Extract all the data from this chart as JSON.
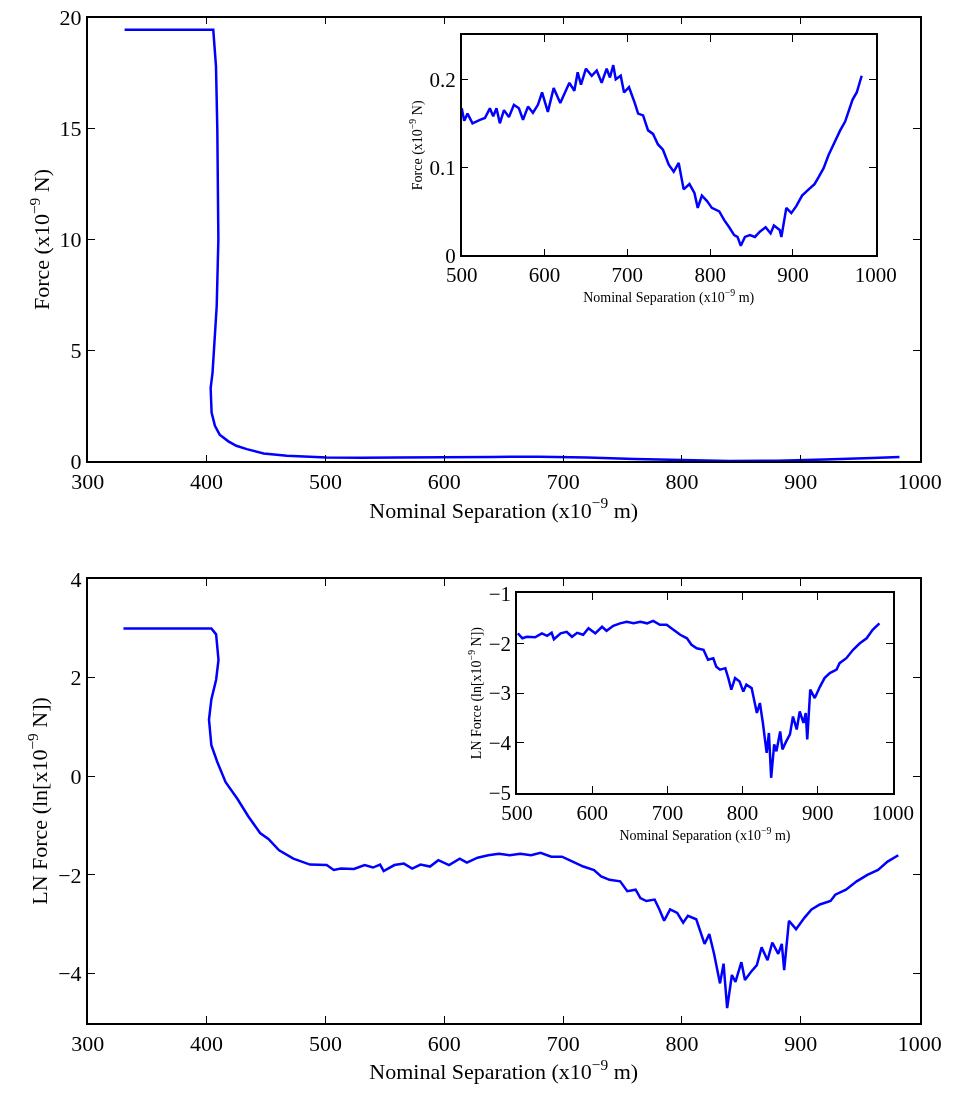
{
  "chart_data": [
    {
      "type": "line",
      "xlabel": "Nominal Separation (x10$^{−9}$ m)",
      "ylabel": "Force (x10$^{−9}$ N)",
      "xlim": [
        300,
        1000
      ],
      "xticks": [
        300,
        400,
        500,
        600,
        700,
        800,
        900,
        1000
      ],
      "ylim": [
        0,
        20
      ],
      "yticks": [
        0,
        5,
        10,
        15,
        20
      ],
      "marker": "none",
      "line_style": "solid",
      "series": [
        {
          "color": "#0000ff",
          "x": [
            331,
            405.6,
            407.9,
            409,
            409.9,
            408.5,
            405,
            403.4,
            404.2,
            407,
            411,
            418.3,
            425,
            433.8,
            448,
            467.6,
            501,
            530,
            560,
            600,
            640,
            680,
            720,
            760,
            800,
            840,
            880,
            920,
            960,
            983
          ],
          "values": [
            19.45,
            19.45,
            17.8,
            15,
            10,
            7,
            4,
            3.3,
            2.2,
            1.6,
            1.2,
            0.9,
            0.7,
            0.55,
            0.35,
            0.25,
            0.17,
            0.16,
            0.17,
            0.18,
            0.2,
            0.21,
            0.17,
            0.1,
            0.06,
            0.02,
            0.03,
            0.08,
            0.15,
            0.2
          ]
        }
      ]
    },
    {
      "type": "line",
      "xlabel": "Nominal Separation (x10$^{−9}$ m)",
      "ylabel": "Force (x10$^{−9}$ N)",
      "xlim": [
        500,
        1000
      ],
      "xticks": [
        500,
        600,
        700,
        800,
        900,
        1000
      ],
      "ylim": [
        0,
        0.25
      ],
      "yticks": [
        0,
        0.1,
        0.2
      ],
      "marker": "none",
      "line_style": "solid",
      "series": [
        {
          "color": "#0000ff",
          "x": [
            500,
            503,
            507,
            513,
            522,
            528,
            534,
            538,
            542,
            546,
            551,
            557,
            563,
            569,
            574,
            580,
            586,
            592,
            597,
            604,
            611,
            619,
            630,
            636,
            640,
            644,
            650,
            657,
            663,
            669,
            675,
            679,
            683,
            686,
            692,
            696,
            702,
            709,
            713,
            719,
            725,
            731,
            737,
            743,
            750,
            756,
            762,
            768,
            775,
            781,
            785,
            790,
            796,
            802,
            811,
            817,
            823,
            829,
            833,
            837,
            842,
            848,
            854,
            860,
            867,
            873,
            877,
            884,
            886,
            892,
            898,
            904,
            911,
            919,
            926,
            931,
            937,
            943,
            949,
            957,
            963,
            972,
            977,
            983
          ],
          "values": [
            0.167,
            0.153,
            0.161,
            0.15,
            0.154,
            0.156,
            0.167,
            0.158,
            0.167,
            0.15,
            0.165,
            0.157,
            0.171,
            0.167,
            0.154,
            0.169,
            0.162,
            0.171,
            0.185,
            0.163,
            0.19,
            0.173,
            0.196,
            0.187,
            0.208,
            0.194,
            0.212,
            0.204,
            0.21,
            0.196,
            0.212,
            0.202,
            0.216,
            0.2,
            0.204,
            0.185,
            0.191,
            0.173,
            0.161,
            0.159,
            0.142,
            0.138,
            0.126,
            0.12,
            0.103,
            0.095,
            0.105,
            0.075,
            0.081,
            0.071,
            0.054,
            0.068,
            0.062,
            0.054,
            0.05,
            0.04,
            0.032,
            0.023,
            0.021,
            0.011,
            0.021,
            0.023,
            0.021,
            0.027,
            0.032,
            0.025,
            0.034,
            0.029,
            0.021,
            0.054,
            0.048,
            0.056,
            0.068,
            0.075,
            0.081,
            0.089,
            0.099,
            0.114,
            0.126,
            0.142,
            0.152,
            0.177,
            0.185,
            0.204
          ]
        }
      ]
    },
    {
      "type": "line",
      "xlabel": "Nominal Separation (x10$^{−9}$ m)",
      "ylabel": "LN Force (ln[x10$^{−9}$ N])",
      "xlim": [
        300,
        1000
      ],
      "xticks": [
        300,
        400,
        500,
        600,
        700,
        800,
        900,
        1000
      ],
      "ylim": [
        -5,
        4
      ],
      "yticks": [
        -4,
        -2,
        0,
        2,
        4
      ],
      "marker": "none",
      "line_style": "solid",
      "series": [
        {
          "color": "#0000ff",
          "x": [
            330,
            404,
            408,
            410,
            408,
            404,
            402,
            404,
            409,
            416,
            426,
            435,
            445,
            452,
            461,
            473,
            487,
            501,
            507,
            513,
            524,
            533,
            540,
            546,
            549,
            558,
            566,
            573,
            580,
            588,
            595,
            604,
            613,
            619,
            628,
            637,
            646,
            655,
            664,
            673,
            681,
            690,
            699,
            708,
            717,
            726,
            732,
            739,
            748,
            754,
            761,
            765,
            770,
            777,
            781,
            785,
            790,
            796,
            801,
            805,
            812,
            819,
            823,
            827,
            832,
            835,
            838,
            842,
            845,
            850,
            853,
            858,
            863,
            867,
            872,
            876,
            881,
            884,
            886,
            890,
            896,
            903,
            909,
            916,
            925,
            929,
            938,
            947,
            956,
            965,
            973,
            982
          ],
          "values": [
            3.0,
            3.0,
            2.88,
            2.36,
            1.96,
            1.56,
            1.15,
            0.63,
            0.29,
            -0.12,
            -0.46,
            -0.81,
            -1.15,
            -1.27,
            -1.5,
            -1.67,
            -1.79,
            -1.8,
            -1.9,
            -1.87,
            -1.88,
            -1.8,
            -1.85,
            -1.79,
            -1.92,
            -1.8,
            -1.77,
            -1.87,
            -1.79,
            -1.83,
            -1.7,
            -1.8,
            -1.67,
            -1.75,
            -1.65,
            -1.6,
            -1.57,
            -1.6,
            -1.57,
            -1.6,
            -1.55,
            -1.63,
            -1.63,
            -1.73,
            -1.83,
            -1.9,
            -2.03,
            -2.1,
            -2.13,
            -2.33,
            -2.3,
            -2.47,
            -2.53,
            -2.5,
            -2.7,
            -2.93,
            -2.7,
            -2.77,
            -2.97,
            -2.83,
            -2.9,
            -3.4,
            -3.2,
            -3.6,
            -4.2,
            -3.8,
            -4.7,
            -4.03,
            -4.17,
            -3.77,
            -4.13,
            -3.97,
            -3.83,
            -3.47,
            -3.73,
            -3.37,
            -3.6,
            -3.4,
            -3.93,
            -2.93,
            -3.1,
            -2.87,
            -2.7,
            -2.6,
            -2.53,
            -2.4,
            -2.3,
            -2.13,
            -2.0,
            -1.9,
            -1.73,
            -1.6
          ]
        }
      ]
    },
    {
      "type": "line",
      "xlabel": "Nominal Separation (x10$^{−9}$ m)",
      "ylabel": "LN Force (ln[x10$^{−9}$ N])",
      "xlim": [
        500,
        1000
      ],
      "xticks": [
        500,
        600,
        700,
        800,
        900,
        1000
      ],
      "ylim": [
        -5,
        -1
      ],
      "yticks": [
        -5,
        -4,
        -3,
        -2,
        -1
      ],
      "marker": "none",
      "line_style": "solid",
      "series": [
        {
          "color": "#0000ff",
          "x": [
            501,
            507,
            513,
            524,
            533,
            540,
            546,
            549,
            558,
            566,
            573,
            580,
            588,
            595,
            604,
            613,
            619,
            628,
            637,
            646,
            655,
            664,
            673,
            681,
            690,
            699,
            708,
            717,
            726,
            732,
            739,
            748,
            754,
            761,
            765,
            770,
            777,
            781,
            785,
            790,
            796,
            801,
            805,
            812,
            819,
            823,
            827,
            832,
            835,
            838,
            842,
            845,
            850,
            853,
            858,
            863,
            867,
            872,
            876,
            881,
            884,
            886,
            890,
            896,
            903,
            909,
            916,
            925,
            929,
            938,
            947,
            956,
            965,
            973,
            982
          ],
          "values": [
            -1.8,
            -1.9,
            -1.87,
            -1.88,
            -1.8,
            -1.85,
            -1.79,
            -1.92,
            -1.8,
            -1.77,
            -1.87,
            -1.79,
            -1.83,
            -1.7,
            -1.8,
            -1.67,
            -1.75,
            -1.65,
            -1.6,
            -1.57,
            -1.6,
            -1.57,
            -1.6,
            -1.55,
            -1.63,
            -1.63,
            -1.73,
            -1.83,
            -1.9,
            -2.03,
            -2.1,
            -2.13,
            -2.33,
            -2.3,
            -2.47,
            -2.53,
            -2.5,
            -2.7,
            -2.93,
            -2.7,
            -2.77,
            -2.97,
            -2.83,
            -2.9,
            -3.4,
            -3.2,
            -3.6,
            -4.2,
            -3.8,
            -4.7,
            -4.03,
            -4.17,
            -3.77,
            -4.13,
            -3.97,
            -3.83,
            -3.47,
            -3.73,
            -3.37,
            -3.6,
            -3.4,
            -3.93,
            -2.93,
            -3.1,
            -2.87,
            -2.7,
            -2.6,
            -2.53,
            -2.4,
            -2.3,
            -2.13,
            -2.0,
            -1.9,
            -1.73,
            -1.6
          ]
        }
      ]
    }
  ]
}
